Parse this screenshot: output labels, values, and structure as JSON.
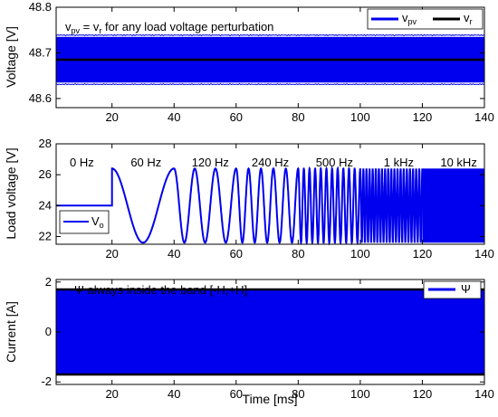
{
  "colors": {
    "signal": "#0000ee",
    "reference": "#000000",
    "axis": "#000000",
    "background": "#ffffff"
  },
  "chart_data": [
    {
      "type": "line",
      "ylabel": "Voltage [V]",
      "xlim": [
        2,
        140
      ],
      "ylim": [
        48.58,
        48.8
      ],
      "xticks": [
        "20",
        "40",
        "60",
        "80",
        "100",
        "120",
        "140"
      ],
      "yticks": [
        "48.6",
        "48.7",
        "48.8"
      ],
      "ytick_values": [
        48.6,
        48.7,
        48.8
      ],
      "annotation": "vpv = vr for any load voltage perturbation",
      "annotation_main": "v",
      "annotation_sub1": "pv",
      "annotation_mid": " = v",
      "annotation_sub2": "r",
      "annotation_tail": " for any load voltage perturbation",
      "legend_placement": "top-right",
      "legend_entries": [
        "vpv",
        "vr"
      ],
      "series": [
        {
          "name": "vpv",
          "name_main": "v",
          "name_sub": "pv",
          "center": 48.685,
          "band_low": 48.635,
          "band_high": 48.735
        },
        {
          "name": "vr",
          "name_main": "v",
          "name_sub": "r",
          "value": 48.685
        }
      ]
    },
    {
      "type": "line",
      "ylabel": "Load voltage [V]",
      "xlim": [
        2,
        140
      ],
      "ylim": [
        21.5,
        28
      ],
      "xticks": [
        "20",
        "40",
        "60",
        "80",
        "100",
        "120",
        "140"
      ],
      "yticks": [
        "22",
        "24",
        "26",
        "28"
      ],
      "ytick_values": [
        22,
        24,
        26,
        28
      ],
      "legend_placement": "bottom-left",
      "legend_entries": [
        "Vo"
      ],
      "series": [
        {
          "name": "Vo",
          "name_main": "V",
          "name_sub": "o",
          "initial": 24,
          "low": 21.6,
          "high": 26.4
        }
      ],
      "segments": [
        {
          "label": "0 Hz",
          "x_start": 0,
          "x_end": 20,
          "cycles": 0
        },
        {
          "label": "60 Hz",
          "x_start": 20,
          "x_end": 40,
          "cycles": 1
        },
        {
          "label": "120 Hz",
          "x_start": 40,
          "x_end": 60,
          "cycles": 3
        },
        {
          "label": "240 Hz",
          "x_start": 60,
          "x_end": 80,
          "cycles": 5
        },
        {
          "label": "500 Hz",
          "x_start": 80,
          "x_end": 100,
          "cycles": 11
        },
        {
          "label": "1 kHz",
          "x_start": 100,
          "x_end": 120,
          "cycles": 20
        },
        {
          "label": "10 kHz",
          "x_start": 120,
          "x_end": 140,
          "cycles": 200
        }
      ]
    },
    {
      "type": "line",
      "xlabel": "Time [ms]",
      "ylabel": "Current [A]",
      "xlim": [
        2,
        140
      ],
      "ylim": [
        -2.1,
        2.1
      ],
      "xticks": [
        "20",
        "40",
        "60",
        "80",
        "100",
        "120",
        "140"
      ],
      "yticks": [
        "-2",
        "0",
        "2"
      ],
      "ytick_values": [
        -2,
        0,
        2
      ],
      "annotation": "Ψ always inside the band [-H,+H]",
      "legend_placement": "top-right",
      "legend_entries": [
        "Ψ"
      ],
      "band": {
        "H": 1.7,
        "band_lines": [
          -1.7,
          1.7
        ]
      },
      "series": [
        {
          "name": "Ψ",
          "low": -1.7,
          "high": 1.7
        }
      ]
    }
  ]
}
